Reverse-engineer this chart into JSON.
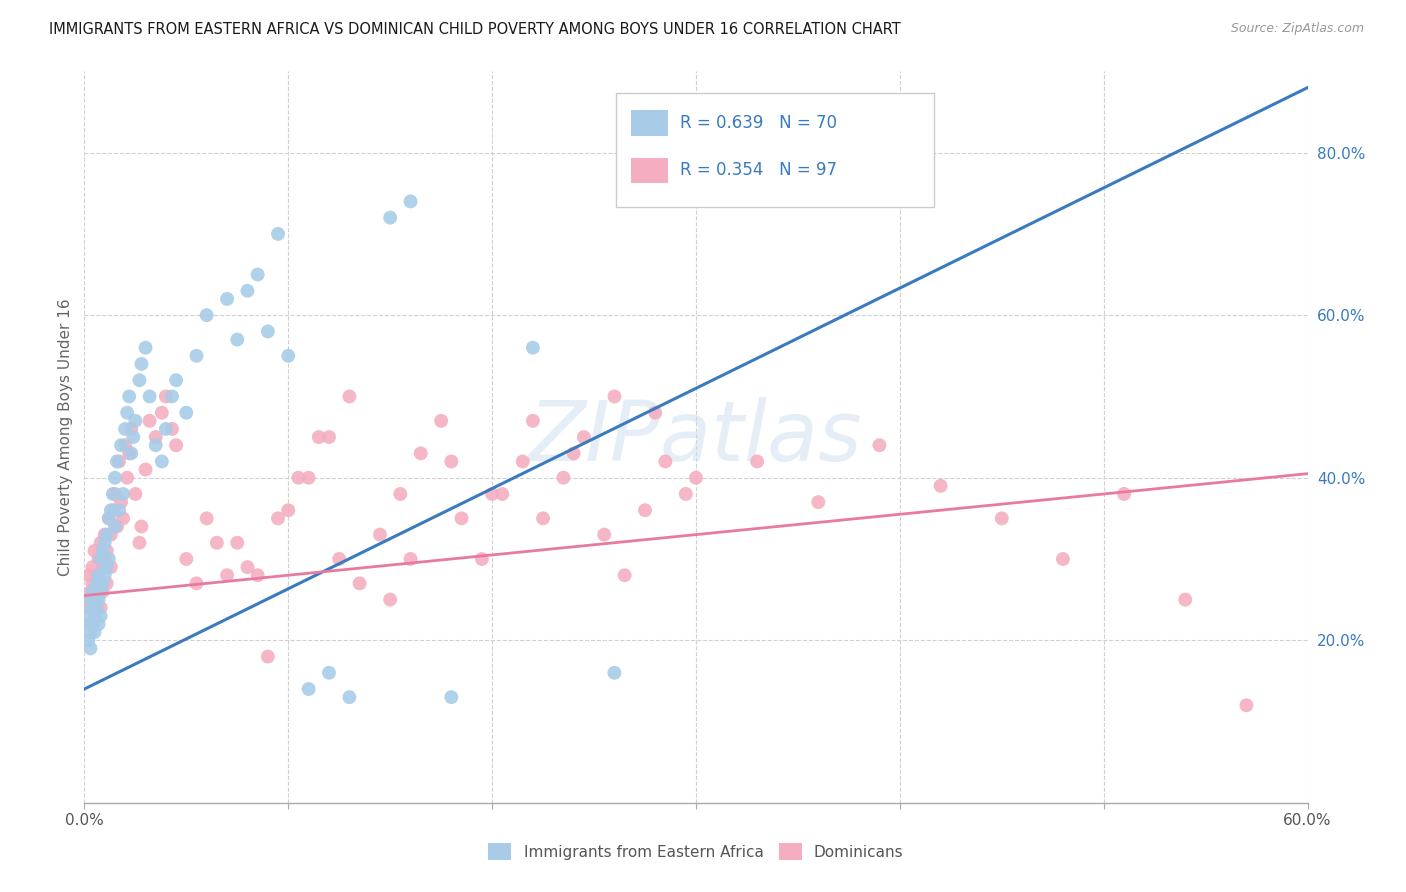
{
  "title": "IMMIGRANTS FROM EASTERN AFRICA VS DOMINICAN CHILD POVERTY AMONG BOYS UNDER 16 CORRELATION CHART",
  "source": "Source: ZipAtlas.com",
  "ylabel_label": "Child Poverty Among Boys Under 16",
  "xlim": [
    0.0,
    0.6
  ],
  "ylim": [
    0.0,
    0.9
  ],
  "xtick_positions": [
    0.0,
    0.1,
    0.2,
    0.3,
    0.4,
    0.5,
    0.6
  ],
  "xtick_labels": [
    "0.0%",
    "",
    "",
    "",
    "",
    "",
    "60.0%"
  ],
  "ytick_right_positions": [
    0.2,
    0.4,
    0.6,
    0.8
  ],
  "ytick_right_labels": [
    "20.0%",
    "40.0%",
    "60.0%",
    "80.0%"
  ],
  "legend_labels": [
    "Immigrants from Eastern Africa",
    "Dominicans"
  ],
  "blue_R": "0.639",
  "blue_N": "70",
  "pink_R": "0.354",
  "pink_N": "97",
  "blue_color": "#a8cce8",
  "pink_color": "#f4aec0",
  "blue_line_color": "#3a7abf",
  "pink_line_color": "#e87aa0",
  "watermark": "ZIPatlas",
  "background_color": "#ffffff",
  "grid_color": "#d0d0d0",
  "blue_line_x0": 0.0,
  "blue_line_y0": 0.14,
  "blue_line_x1": 0.6,
  "blue_line_y1": 0.88,
  "pink_line_x0": 0.0,
  "pink_line_y0": 0.255,
  "pink_line_x1": 0.6,
  "pink_line_y1": 0.405,
  "blue_scatter_x": [
    0.001,
    0.002,
    0.002,
    0.003,
    0.003,
    0.003,
    0.004,
    0.004,
    0.004,
    0.005,
    0.005,
    0.005,
    0.006,
    0.006,
    0.007,
    0.007,
    0.007,
    0.008,
    0.008,
    0.008,
    0.009,
    0.009,
    0.01,
    0.01,
    0.011,
    0.011,
    0.012,
    0.012,
    0.013,
    0.014,
    0.015,
    0.015,
    0.016,
    0.017,
    0.018,
    0.019,
    0.02,
    0.021,
    0.022,
    0.023,
    0.024,
    0.025,
    0.027,
    0.028,
    0.03,
    0.032,
    0.035,
    0.038,
    0.04,
    0.043,
    0.045,
    0.05,
    0.055,
    0.06,
    0.07,
    0.075,
    0.08,
    0.085,
    0.09,
    0.095,
    0.1,
    0.11,
    0.12,
    0.13,
    0.15,
    0.16,
    0.18,
    0.22,
    0.26,
    0.32
  ],
  "blue_scatter_y": [
    0.23,
    0.2,
    0.22,
    0.25,
    0.21,
    0.19,
    0.24,
    0.22,
    0.26,
    0.23,
    0.25,
    0.21,
    0.27,
    0.24,
    0.28,
    0.22,
    0.25,
    0.3,
    0.26,
    0.23,
    0.31,
    0.27,
    0.32,
    0.28,
    0.33,
    0.29,
    0.35,
    0.3,
    0.36,
    0.38,
    0.4,
    0.34,
    0.42,
    0.36,
    0.44,
    0.38,
    0.46,
    0.48,
    0.5,
    0.43,
    0.45,
    0.47,
    0.52,
    0.54,
    0.56,
    0.5,
    0.44,
    0.42,
    0.46,
    0.5,
    0.52,
    0.48,
    0.55,
    0.6,
    0.62,
    0.57,
    0.63,
    0.65,
    0.58,
    0.7,
    0.55,
    0.14,
    0.16,
    0.13,
    0.72,
    0.74,
    0.13,
    0.56,
    0.16,
    0.82
  ],
  "pink_scatter_x": [
    0.001,
    0.002,
    0.002,
    0.003,
    0.003,
    0.004,
    0.004,
    0.005,
    0.005,
    0.005,
    0.006,
    0.006,
    0.007,
    0.007,
    0.008,
    0.008,
    0.009,
    0.009,
    0.01,
    0.01,
    0.011,
    0.011,
    0.012,
    0.013,
    0.013,
    0.014,
    0.015,
    0.016,
    0.017,
    0.018,
    0.019,
    0.02,
    0.021,
    0.022,
    0.023,
    0.025,
    0.027,
    0.028,
    0.03,
    0.032,
    0.035,
    0.038,
    0.04,
    0.043,
    0.045,
    0.05,
    0.055,
    0.06,
    0.065,
    0.07,
    0.08,
    0.09,
    0.1,
    0.11,
    0.12,
    0.13,
    0.15,
    0.16,
    0.18,
    0.2,
    0.22,
    0.24,
    0.26,
    0.28,
    0.3,
    0.33,
    0.36,
    0.39,
    0.42,
    0.45,
    0.48,
    0.51,
    0.54,
    0.57,
    0.075,
    0.085,
    0.095,
    0.105,
    0.115,
    0.125,
    0.135,
    0.145,
    0.155,
    0.165,
    0.175,
    0.185,
    0.195,
    0.205,
    0.215,
    0.225,
    0.235,
    0.245,
    0.255,
    0.265,
    0.275,
    0.285,
    0.295
  ],
  "pink_scatter_y": [
    0.25,
    0.22,
    0.28,
    0.26,
    0.24,
    0.27,
    0.29,
    0.23,
    0.26,
    0.31,
    0.28,
    0.25,
    0.3,
    0.27,
    0.32,
    0.24,
    0.29,
    0.26,
    0.33,
    0.3,
    0.31,
    0.27,
    0.35,
    0.33,
    0.29,
    0.36,
    0.38,
    0.34,
    0.42,
    0.37,
    0.35,
    0.44,
    0.4,
    0.43,
    0.46,
    0.38,
    0.32,
    0.34,
    0.41,
    0.47,
    0.45,
    0.48,
    0.5,
    0.46,
    0.44,
    0.3,
    0.27,
    0.35,
    0.32,
    0.28,
    0.29,
    0.18,
    0.36,
    0.4,
    0.45,
    0.5,
    0.25,
    0.3,
    0.42,
    0.38,
    0.47,
    0.43,
    0.5,
    0.48,
    0.4,
    0.42,
    0.37,
    0.44,
    0.39,
    0.35,
    0.3,
    0.38,
    0.25,
    0.12,
    0.32,
    0.28,
    0.35,
    0.4,
    0.45,
    0.3,
    0.27,
    0.33,
    0.38,
    0.43,
    0.47,
    0.35,
    0.3,
    0.38,
    0.42,
    0.35,
    0.4,
    0.45,
    0.33,
    0.28,
    0.36,
    0.42,
    0.38
  ]
}
